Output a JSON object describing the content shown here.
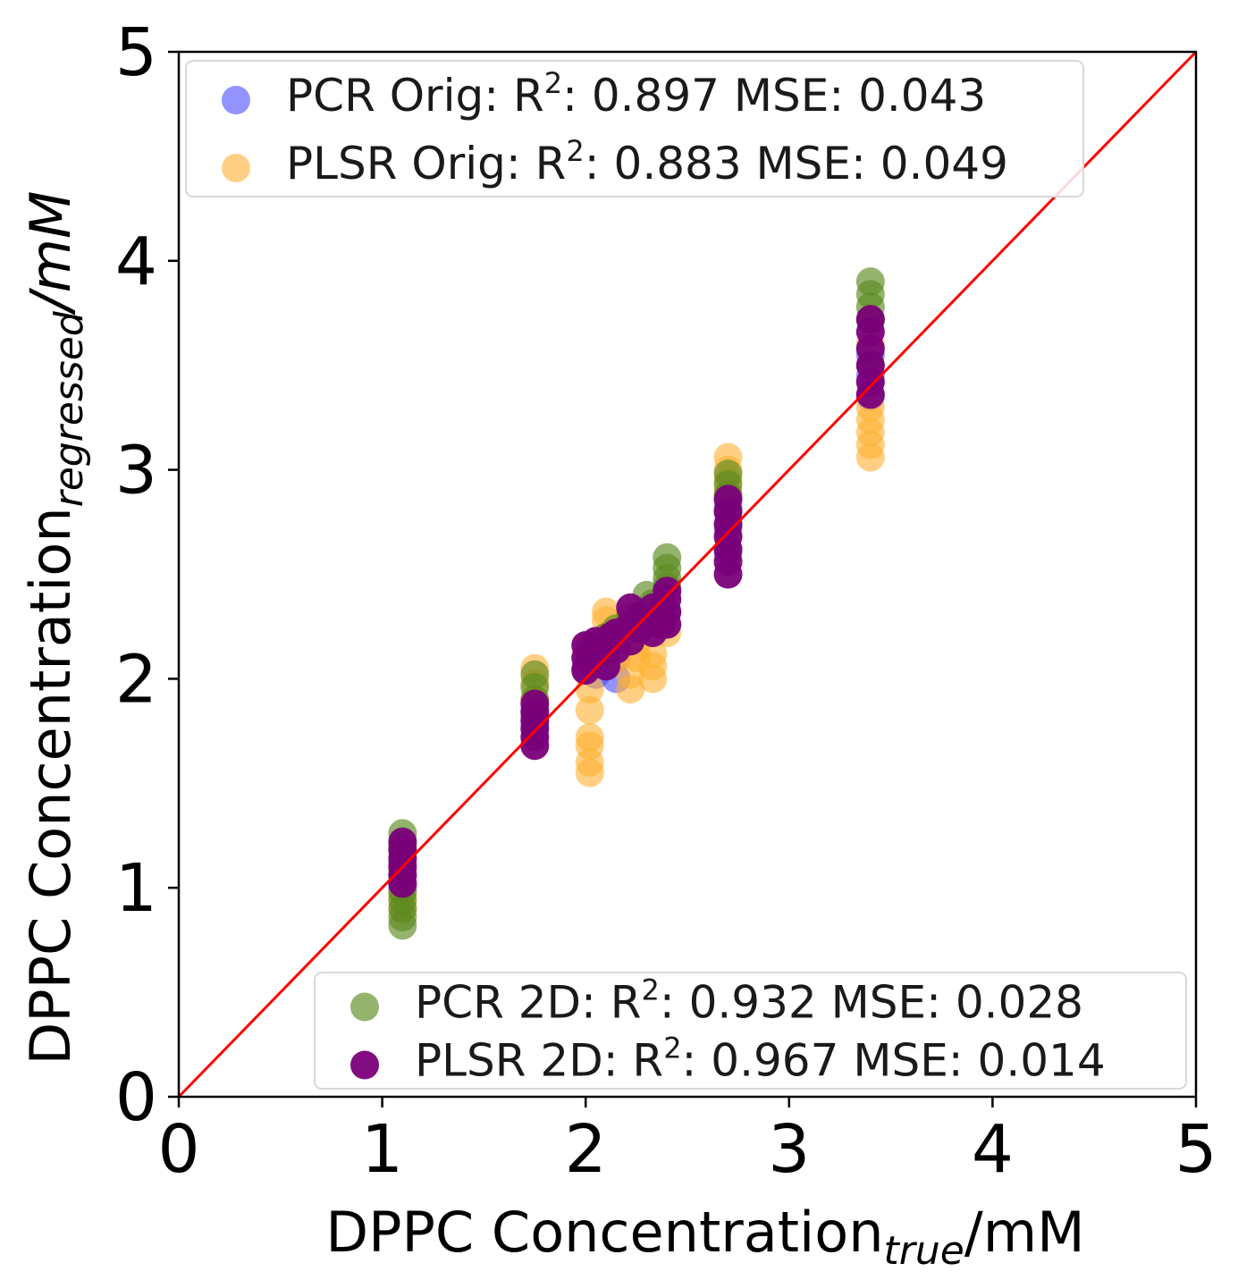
{
  "chart_data": {
    "type": "scatter",
    "xlabel": {
      "main": "DPPC Concentration",
      "sub": "true",
      "unit": "/mM"
    },
    "ylabel": {
      "main": "DPPC Concentration",
      "sub": "regressed",
      "unit": "/mM"
    },
    "xlim": [
      0,
      5
    ],
    "ylim": [
      0,
      5
    ],
    "xticks": [
      "0",
      "1",
      "2",
      "3",
      "4",
      "5"
    ],
    "yticks": [
      "0",
      "1",
      "2",
      "3",
      "4",
      "5"
    ],
    "grid": false,
    "reference_line": {
      "x": [
        0,
        5
      ],
      "y": [
        0,
        5
      ],
      "color": "#ff0000"
    },
    "legends": [
      {
        "placement": "top-left",
        "entries": [
          {
            "series": 0,
            "label": "PCR Orig: R",
            "sup": "2",
            "rest": ": 0.897 MSE: 0.043"
          },
          {
            "series": 1,
            "label": "PLSR Orig: R",
            "sup": "2",
            "rest": ": 0.883 MSE: 0.049"
          }
        ]
      },
      {
        "placement": "bottom-right",
        "entries": [
          {
            "series": 2,
            "label": "PCR 2D: R",
            "sup": "2",
            "rest": ": 0.932 MSE: 0.028"
          },
          {
            "series": 3,
            "label": "PLSR 2D: R",
            "sup": "2",
            "rest": ": 0.967 MSE: 0.014"
          }
        ]
      }
    ],
    "series": [
      {
        "name": "PCR Orig",
        "color": "#4b4bff",
        "alpha": 0.6,
        "points": [
          [
            1.1,
            1.0
          ],
          [
            1.1,
            1.06
          ],
          [
            1.1,
            1.12
          ],
          [
            1.75,
            1.85
          ],
          [
            1.75,
            1.78
          ],
          [
            2.0,
            2.05
          ],
          [
            2.05,
            2.02
          ],
          [
            2.1,
            2.06
          ],
          [
            2.15,
            2.0
          ],
          [
            2.15,
            2.1
          ],
          [
            2.22,
            2.2
          ],
          [
            2.25,
            2.25
          ],
          [
            2.33,
            2.28
          ],
          [
            2.4,
            2.32
          ],
          [
            2.7,
            2.6
          ],
          [
            2.7,
            2.72
          ],
          [
            2.7,
            2.82
          ],
          [
            3.4,
            3.45
          ],
          [
            3.4,
            3.55
          ],
          [
            3.4,
            3.35
          ]
        ]
      },
      {
        "name": "PLSR Orig",
        "color": "#ffb030",
        "alpha": 0.6,
        "points": [
          [
            1.1,
            0.9
          ],
          [
            1.1,
            0.96
          ],
          [
            1.1,
            1.02
          ],
          [
            1.1,
            1.08
          ],
          [
            1.1,
            1.15
          ],
          [
            1.1,
            1.2
          ],
          [
            1.75,
            2.05
          ],
          [
            1.75,
            1.98
          ],
          [
            1.75,
            1.9
          ],
          [
            2.02,
            1.55
          ],
          [
            2.02,
            1.6
          ],
          [
            2.02,
            1.68
          ],
          [
            2.02,
            1.72
          ],
          [
            2.02,
            1.85
          ],
          [
            2.02,
            1.95
          ],
          [
            2.1,
            2.2
          ],
          [
            2.1,
            2.28
          ],
          [
            2.1,
            2.32
          ],
          [
            2.15,
            2.1
          ],
          [
            2.15,
            2.18
          ],
          [
            2.22,
            1.95
          ],
          [
            2.22,
            2.02
          ],
          [
            2.25,
            2.1
          ],
          [
            2.25,
            2.15
          ],
          [
            2.33,
            2.0
          ],
          [
            2.33,
            2.06
          ],
          [
            2.33,
            2.12
          ],
          [
            2.4,
            2.22
          ],
          [
            2.4,
            2.26
          ],
          [
            2.7,
            3.06
          ],
          [
            2.7,
            3.0
          ],
          [
            2.7,
            2.95
          ],
          [
            2.7,
            2.9
          ],
          [
            3.4,
            3.06
          ],
          [
            3.4,
            3.12
          ],
          [
            3.4,
            3.18
          ],
          [
            3.4,
            3.24
          ],
          [
            3.4,
            3.3
          ],
          [
            3.4,
            3.6
          ],
          [
            3.4,
            3.72
          ]
        ]
      },
      {
        "name": "PCR 2D",
        "color": "#5a8a1e",
        "alpha": 0.65,
        "points": [
          [
            1.1,
            0.82
          ],
          [
            1.1,
            0.86
          ],
          [
            1.1,
            0.9
          ],
          [
            1.1,
            0.94
          ],
          [
            1.1,
            0.98
          ],
          [
            1.1,
            1.2
          ],
          [
            1.1,
            1.26
          ],
          [
            1.75,
            2.02
          ],
          [
            1.75,
            1.96
          ],
          [
            1.75,
            1.9
          ],
          [
            1.75,
            1.82
          ],
          [
            2.02,
            2.1
          ],
          [
            2.02,
            2.16
          ],
          [
            2.1,
            2.12
          ],
          [
            2.1,
            2.2
          ],
          [
            2.15,
            2.24
          ],
          [
            2.22,
            2.3
          ],
          [
            2.3,
            2.4
          ],
          [
            2.33,
            2.36
          ],
          [
            2.4,
            2.58
          ],
          [
            2.4,
            2.53
          ],
          [
            2.4,
            2.48
          ],
          [
            2.4,
            2.44
          ],
          [
            2.7,
            2.98
          ],
          [
            2.7,
            2.93
          ],
          [
            2.7,
            2.88
          ],
          [
            2.7,
            2.8
          ],
          [
            3.4,
            3.9
          ],
          [
            3.4,
            3.84
          ],
          [
            3.4,
            3.78
          ],
          [
            3.4,
            3.72
          ],
          [
            3.4,
            3.5
          ]
        ]
      },
      {
        "name": "PLSR 2D",
        "color": "#7a007a",
        "alpha": 0.95,
        "points": [
          [
            1.1,
            1.02
          ],
          [
            1.1,
            1.06
          ],
          [
            1.1,
            1.1
          ],
          [
            1.1,
            1.14
          ],
          [
            1.1,
            1.18
          ],
          [
            1.1,
            1.22
          ],
          [
            1.75,
            1.68
          ],
          [
            1.75,
            1.72
          ],
          [
            1.75,
            1.76
          ],
          [
            1.75,
            1.8
          ],
          [
            1.75,
            1.84
          ],
          [
            1.75,
            1.88
          ],
          [
            2.0,
            2.04
          ],
          [
            2.0,
            2.1
          ],
          [
            2.0,
            2.16
          ],
          [
            2.02,
            2.08
          ],
          [
            2.05,
            2.12
          ],
          [
            2.05,
            2.18
          ],
          [
            2.1,
            2.06
          ],
          [
            2.1,
            2.14
          ],
          [
            2.12,
            2.2
          ],
          [
            2.15,
            2.14
          ],
          [
            2.15,
            2.22
          ],
          [
            2.22,
            2.18
          ],
          [
            2.22,
            2.26
          ],
          [
            2.22,
            2.34
          ],
          [
            2.27,
            2.24
          ],
          [
            2.27,
            2.3
          ],
          [
            2.33,
            2.22
          ],
          [
            2.33,
            2.28
          ],
          [
            2.33,
            2.34
          ],
          [
            2.37,
            2.26
          ],
          [
            2.37,
            2.32
          ],
          [
            2.4,
            2.26
          ],
          [
            2.4,
            2.32
          ],
          [
            2.4,
            2.38
          ],
          [
            2.4,
            2.42
          ],
          [
            2.7,
            2.5
          ],
          [
            2.7,
            2.56
          ],
          [
            2.7,
            2.62
          ],
          [
            2.7,
            2.68
          ],
          [
            2.7,
            2.74
          ],
          [
            2.7,
            2.8
          ],
          [
            2.7,
            2.86
          ],
          [
            3.4,
            3.36
          ],
          [
            3.4,
            3.42
          ],
          [
            3.4,
            3.5
          ],
          [
            3.4,
            3.58
          ],
          [
            3.4,
            3.66
          ],
          [
            3.4,
            3.72
          ]
        ]
      }
    ]
  }
}
